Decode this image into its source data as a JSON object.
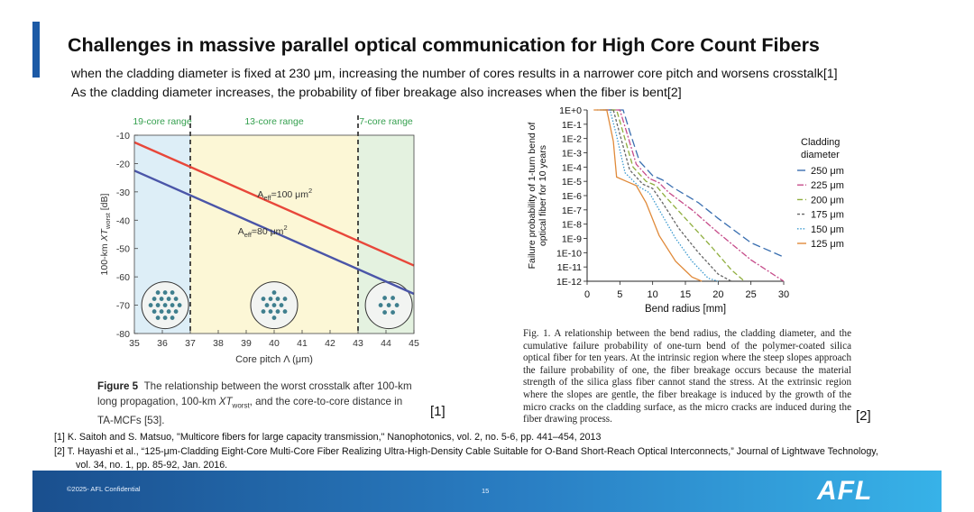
{
  "slide": {
    "title": "Challenges in massive parallel optical communication for High Core Count Fibers",
    "bullet1": "when the cladding diameter is fixed at 230 μm, increasing the number of cores results in a narrower core pitch and worsens crosstalk[1]",
    "bullet2": "As the cladding diameter increases, the probability of fiber breakage also increases when the fiber is bent[2]",
    "ref_tag_1": "[1]",
    "ref_tag_2": "[2]",
    "references": {
      "ref1": "[1] K. Saitoh and S. Matsuo, \"Multicore fibers for large capacity transmission,\" Nanophotonics, vol. 2, no. 5-6, pp. 441–454, 2013",
      "ref2a": "[2] T. Hayashi et al., “125-μm-Cladding Eight-Core Multi-Core Fiber Realizing Ultra-High-Density Cable Suitable for O-Band Short-Reach Optical Interconnects,” Journal of Lightwave Technology,",
      "ref2b": "vol. 34, no. 1, pp. 85-92, Jan. 2016."
    },
    "footer": {
      "confidential": "©2025- AFL Confidential",
      "page_number": "15",
      "logo": "AFL",
      "color_start": "#1a4f8e",
      "color_end": "#37b2e8"
    }
  },
  "figure5": {
    "caption_label": "Figure 5",
    "caption_line1": "The relationship between the worst crosstalk after 100-km",
    "caption_line2a": "long propagation, 100-km ",
    "caption_xt": "XT",
    "caption_worst": "worst",
    "caption_line2b": ", and the core-to-core distance in",
    "caption_line3": "TA-MCFs [53]."
  },
  "figure1": {
    "caption": "Fig. 1.   A relationship between the bend radius, the cladding diameter, and the cumulative failure probability of one-turn bend of the polymer-coated silica optical fiber for ten years. At the intrinsic region where the steep slopes approach the failure probability of one, the fiber breakage occurs because the material strength of the silica glass fiber cannot stand the stress. At the extrinsic region where the slopes are gentle, the fiber breakage is induced by the growth of the micro cracks on the cladding surface, as the micro cracks are induced during the fiber drawing process."
  },
  "chart_data": [
    {
      "type": "line",
      "id": "crosstalk",
      "xlabel": "Core pitch Λ (μm)",
      "ylabel": "100-km XTworst [dB]",
      "ylabel_main": "100-km ",
      "ylabel_xt": "XT",
      "ylabel_sub": "worst",
      "ylabel_unit": " [dB]",
      "xlim": [
        35,
        45
      ],
      "ylim": [
        -80,
        -10
      ],
      "xticks": [
        35,
        36,
        37,
        38,
        39,
        40,
        41,
        42,
        43,
        44,
        45
      ],
      "yticks": [
        -10,
        -20,
        -30,
        -40,
        -50,
        -60,
        -70,
        -80
      ],
      "regions": [
        {
          "label": "19-core range",
          "x0": 35,
          "x1": 37,
          "color": "#ddeef7"
        },
        {
          "label": "13-core range",
          "x0": 37,
          "x1": 43,
          "color": "#fcf7d6"
        },
        {
          "label": "7-core range",
          "x0": 43,
          "x1": 45,
          "color": "#e4f2e0"
        }
      ],
      "region_label_color": "#35a04f",
      "boundaries": [
        37,
        43
      ],
      "series": [
        {
          "name": "Aeff=100 μm2",
          "label_main": "A",
          "label_sub": "eff",
          "label_rest": "=100 μm",
          "label_sup": "2",
          "x": [
            35,
            45
          ],
          "y": [
            -12.5,
            -56
          ],
          "color": "#e8473a",
          "label_x": 39.4,
          "label_y": -32
        },
        {
          "name": "Aeff=80 μm2",
          "label_main": "A",
          "label_sub": "eff",
          "label_rest": "=80 μm",
          "label_sup": "2",
          "x": [
            35,
            45
          ],
          "y": [
            -22.5,
            -66
          ],
          "color": "#4a55a8",
          "label_x": 38.7,
          "label_y": -45
        }
      ],
      "core_layouts": [
        {
          "label": "19-core",
          "x": 36.1,
          "y": -70,
          "cores": 19
        },
        {
          "label": "13-core",
          "x": 40,
          "y": -70,
          "cores": 13
        },
        {
          "label": "7-core",
          "x": 44.1,
          "y": -70,
          "cores": 7
        }
      ]
    },
    {
      "type": "line",
      "id": "failure",
      "xlabel": "Bend radius [mm]",
      "ylabel_line1": "Failure probability of 1-turn bend of",
      "ylabel_line2": "optical fiber for 10 years",
      "xlim": [
        0,
        30
      ],
      "ylim_exp": [
        -12,
        0
      ],
      "xticks": [
        0,
        5,
        10,
        15,
        20,
        25,
        30
      ],
      "yticks": [
        "1E+0",
        "1E-1",
        "1E-2",
        "1E-3",
        "1E-4",
        "1E-5",
        "1E-6",
        "1E-7",
        "1E-8",
        "1E-9",
        "1E-10",
        "1E-11",
        "1E-12"
      ],
      "legend_title_1": "Cladding",
      "legend_title_2": "diameter",
      "series": [
        {
          "name": "250 μm",
          "color": "#3a6fb0",
          "dash": "9,4",
          "x": [
            3,
            5.5,
            6.5,
            8,
            10,
            11.5,
            13,
            17,
            20,
            25,
            30
          ],
          "y": [
            0,
            0,
            -1.5,
            -3.6,
            -4.6,
            -4.9,
            -5.4,
            -6.5,
            -7.6,
            -9.3,
            -10.3
          ]
        },
        {
          "name": "225 μm",
          "color": "#c64c8a",
          "dash": "7,2,2,2",
          "x": [
            2.5,
            5,
            6,
            7.5,
            9.5,
            11,
            12.5,
            16,
            20,
            25,
            30
          ],
          "y": [
            0,
            0,
            -1.5,
            -3.8,
            -4.8,
            -5.1,
            -5.8,
            -7.0,
            -8.6,
            -10.5,
            -12
          ]
        },
        {
          "name": "200 μm",
          "color": "#8fae3e",
          "dash": "6,3",
          "x": [
            2.3,
            4.5,
            5.5,
            7,
            9,
            10.5,
            12,
            15,
            19,
            22,
            24
          ],
          "y": [
            0,
            0,
            -1.6,
            -4.0,
            -5.0,
            -5.3,
            -6.1,
            -7.6,
            -9.6,
            -11.2,
            -12
          ]
        },
        {
          "name": "175 μm",
          "color": "#666666",
          "dash": "3,2",
          "x": [
            2,
            4,
            5,
            6.5,
            8.5,
            10,
            11.5,
            14,
            17,
            20,
            22
          ],
          "y": [
            0,
            0,
            -1.7,
            -4.2,
            -5.2,
            -5.5,
            -6.5,
            -8.3,
            -10.0,
            -11.5,
            -12
          ]
        },
        {
          "name": "150 μm",
          "color": "#3c9ad0",
          "dash": "1.5,1.8",
          "x": [
            1.5,
            3.5,
            4.5,
            5.8,
            8,
            9.5,
            11,
            13.5,
            16,
            18.5,
            20
          ],
          "y": [
            0,
            0,
            -1.8,
            -4.4,
            -5.4,
            -5.8,
            -7.0,
            -9.0,
            -10.6,
            -11.8,
            -12
          ]
        },
        {
          "name": "125 μm",
          "color": "#e08a3a",
          "dash": "",
          "x": [
            1,
            3,
            4,
            4.5,
            6,
            7.5,
            9,
            11,
            13.5,
            16,
            17.5
          ],
          "y": [
            0,
            0,
            -2.2,
            -4.7,
            -5.0,
            -5.3,
            -6.5,
            -8.8,
            -10.6,
            -11.7,
            -12
          ]
        }
      ]
    }
  ]
}
